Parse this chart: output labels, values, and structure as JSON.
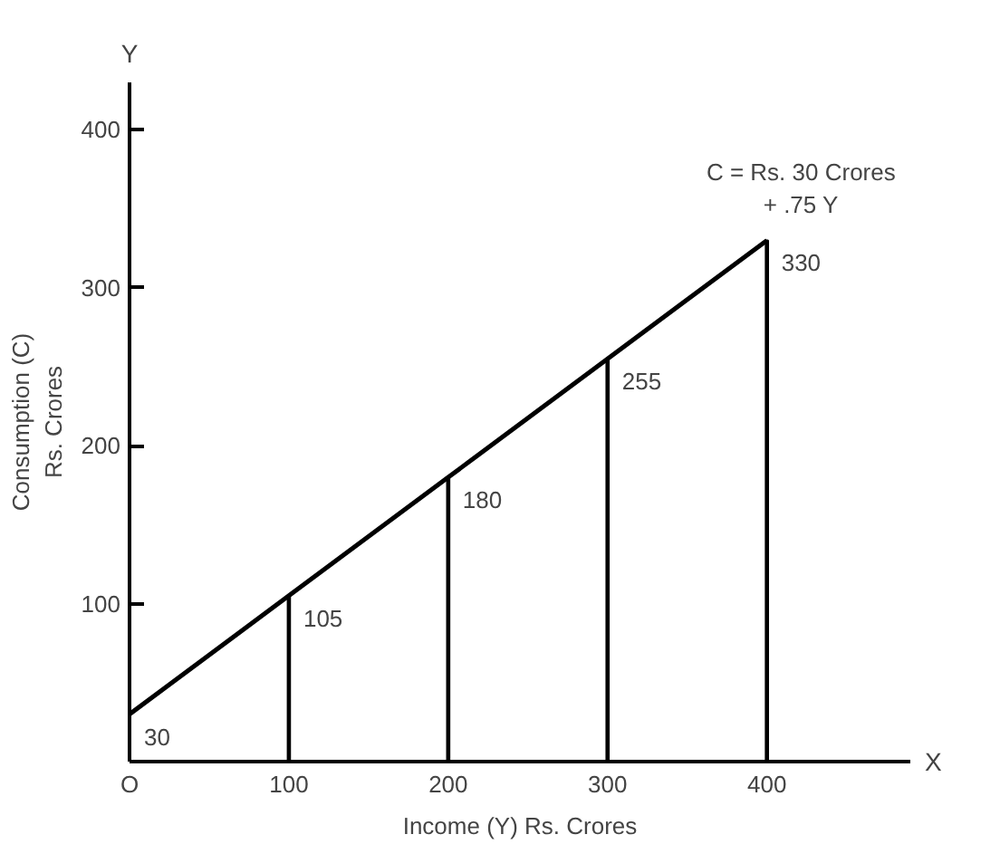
{
  "chart_data": {
    "type": "line",
    "xlabel": "Income (Y) Rs. Crores",
    "ylabel": "Consumption (C)\nRs. Crores",
    "xlim": [
      0,
      490
    ],
    "ylim": [
      0,
      430
    ],
    "xticks": [
      {
        "value": 0,
        "label": "O"
      },
      100,
      200,
      300,
      400
    ],
    "yticks": [
      100,
      200,
      300,
      400
    ],
    "grid": false,
    "legend": false,
    "marker": "none",
    "line_style": "solid",
    "series": [
      {
        "color": "#000000",
        "x": [
          0,
          100,
          200,
          300,
          400
        ],
        "values": [
          30,
          105,
          180,
          255,
          330
        ],
        "value_labels": [
          "30",
          "105",
          "180",
          "255",
          "330"
        ]
      },
      {
        "type": "bar",
        "color": "#000000",
        "x": [
          100,
          200,
          300,
          400
        ],
        "values": [
          105,
          180,
          255,
          330
        ]
      }
    ],
    "annotations": [
      "C = Rs. 30 Crores\n+ .75 Y",
      "X",
      "Y"
    ]
  }
}
